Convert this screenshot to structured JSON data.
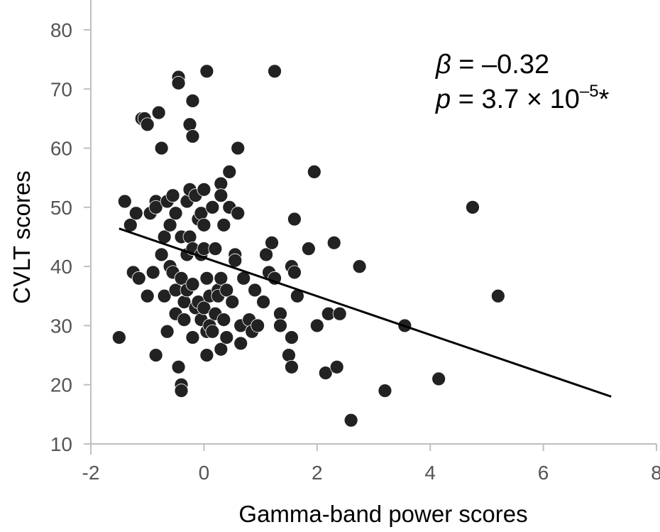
{
  "chart_data": {
    "type": "scatter",
    "title": "",
    "xlabel": "Gamma-band power scores",
    "ylabel": "CVLT scores",
    "xlim": [
      -2,
      8
    ],
    "ylim": [
      10,
      80
    ],
    "xticks": [
      "-2",
      "0",
      "2",
      "4",
      "6",
      "8"
    ],
    "yticks": [
      "10",
      "20",
      "30",
      "40",
      "50",
      "60",
      "70",
      "80"
    ],
    "grid": false,
    "annotation": {
      "beta_symbol": "β",
      "beta_value": " = –0.32",
      "p_symbol": "p",
      "p_prefix": " = 3.7 × 10",
      "p_exponent": "–5",
      "p_suffix": "*"
    },
    "regression_line": {
      "x": [
        -1.5,
        7.2
      ],
      "y": [
        46.4,
        18.0
      ]
    },
    "marker_color": "#222222",
    "line_color": "#000000",
    "points": [
      [
        -1.5,
        28
      ],
      [
        -1.4,
        51
      ],
      [
        -1.3,
        47
      ],
      [
        -1.25,
        39
      ],
      [
        -1.2,
        49
      ],
      [
        -1.15,
        38
      ],
      [
        -1.1,
        65
      ],
      [
        -1.05,
        65
      ],
      [
        -1.0,
        64
      ],
      [
        -0.95,
        49
      ],
      [
        -1.0,
        35
      ],
      [
        -0.9,
        39
      ],
      [
        -0.85,
        51
      ],
      [
        -0.85,
        50
      ],
      [
        -0.8,
        66
      ],
      [
        -0.85,
        25
      ],
      [
        -0.75,
        60
      ],
      [
        -0.75,
        42
      ],
      [
        -0.7,
        45
      ],
      [
        -0.7,
        35
      ],
      [
        -0.65,
        29
      ],
      [
        -0.65,
        51
      ],
      [
        -0.6,
        47
      ],
      [
        -0.6,
        40
      ],
      [
        -0.55,
        52
      ],
      [
        -0.55,
        39
      ],
      [
        -0.5,
        32
      ],
      [
        -0.5,
        49
      ],
      [
        -0.5,
        36
      ],
      [
        -0.45,
        72
      ],
      [
        -0.45,
        71
      ],
      [
        -0.45,
        23
      ],
      [
        -0.4,
        20
      ],
      [
        -0.4,
        19
      ],
      [
        -0.4,
        45
      ],
      [
        -0.4,
        38
      ],
      [
        -0.35,
        34
      ],
      [
        -0.35,
        31
      ],
      [
        -0.3,
        51
      ],
      [
        -0.3,
        42
      ],
      [
        -0.3,
        36
      ],
      [
        -0.25,
        64
      ],
      [
        -0.25,
        53
      ],
      [
        -0.25,
        45
      ],
      [
        -0.2,
        68
      ],
      [
        -0.2,
        62
      ],
      [
        -0.2,
        43
      ],
      [
        -0.2,
        37
      ],
      [
        -0.2,
        28
      ],
      [
        -0.15,
        52
      ],
      [
        -0.15,
        33
      ],
      [
        -0.1,
        48
      ],
      [
        -0.1,
        34
      ],
      [
        -0.05,
        49
      ],
      [
        -0.05,
        42
      ],
      [
        -0.05,
        31
      ],
      [
        0.0,
        53
      ],
      [
        0.0,
        47
      ],
      [
        0.0,
        43
      ],
      [
        0.0,
        33
      ],
      [
        0.05,
        73
      ],
      [
        0.05,
        38
      ],
      [
        0.05,
        25
      ],
      [
        0.05,
        29
      ],
      [
        0.1,
        35
      ],
      [
        0.1,
        30
      ],
      [
        0.15,
        50
      ],
      [
        0.15,
        29
      ],
      [
        0.2,
        43
      ],
      [
        0.2,
        32
      ],
      [
        0.25,
        36
      ],
      [
        0.25,
        35
      ],
      [
        0.3,
        54
      ],
      [
        0.3,
        52
      ],
      [
        0.3,
        38
      ],
      [
        0.3,
        26
      ],
      [
        0.35,
        47
      ],
      [
        0.35,
        31
      ],
      [
        0.4,
        36
      ],
      [
        0.4,
        28
      ],
      [
        0.45,
        56
      ],
      [
        0.45,
        50
      ],
      [
        0.5,
        34
      ],
      [
        0.55,
        42
      ],
      [
        0.55,
        41
      ],
      [
        0.6,
        60
      ],
      [
        0.6,
        49
      ],
      [
        0.65,
        30
      ],
      [
        0.65,
        27
      ],
      [
        0.7,
        38
      ],
      [
        0.8,
        31
      ],
      [
        0.85,
        29
      ],
      [
        0.9,
        36
      ],
      [
        0.95,
        30
      ],
      [
        1.05,
        34
      ],
      [
        1.1,
        42
      ],
      [
        1.15,
        39
      ],
      [
        1.2,
        44
      ],
      [
        1.25,
        73
      ],
      [
        1.25,
        38
      ],
      [
        1.35,
        32
      ],
      [
        1.35,
        30
      ],
      [
        1.5,
        25
      ],
      [
        1.55,
        23
      ],
      [
        1.55,
        28
      ],
      [
        1.55,
        40
      ],
      [
        1.6,
        48
      ],
      [
        1.6,
        39
      ],
      [
        1.65,
        35
      ],
      [
        1.85,
        43
      ],
      [
        1.95,
        56
      ],
      [
        2.0,
        30
      ],
      [
        2.15,
        22
      ],
      [
        2.2,
        32
      ],
      [
        2.3,
        44
      ],
      [
        2.35,
        23
      ],
      [
        2.4,
        32
      ],
      [
        2.6,
        14
      ],
      [
        2.75,
        40
      ],
      [
        3.2,
        19
      ],
      [
        3.55,
        30
      ],
      [
        4.15,
        21
      ],
      [
        4.75,
        50
      ],
      [
        5.2,
        35
      ]
    ]
  }
}
